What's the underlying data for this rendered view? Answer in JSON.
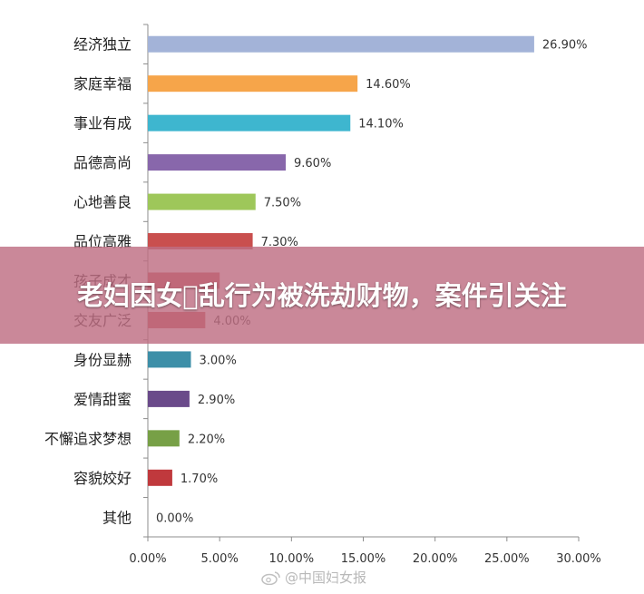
{
  "chart_data": {
    "type": "bar",
    "orientation": "horizontal",
    "categories": [
      "经济独立",
      "家庭幸福",
      "事业有成",
      "品德高尚",
      "心地善良",
      "品位高雅",
      "孩子成才",
      "交友广泛",
      "身份显赫",
      "爱情甜蜜",
      "不懈追求梦想",
      "容貌姣好",
      "其他"
    ],
    "values": [
      26.9,
      14.6,
      14.1,
      9.6,
      7.5,
      7.3,
      5.0,
      4.0,
      3.0,
      2.9,
      2.2,
      1.7,
      0.0
    ],
    "value_labels": [
      "26.90%",
      "14.60%",
      "14.10%",
      "9.60%",
      "7.50%",
      "7.30%",
      "",
      "4.00%",
      "3.00%",
      "2.90%",
      "2.20%",
      "1.70%",
      "0.00%"
    ],
    "colors": [
      "#a3b3d8",
      "#f6a54a",
      "#3eb6cf",
      "#8867ab",
      "#9ec75a",
      "#c94f4e",
      "#c94f4e",
      "#c94f4e",
      "#3d8fa8",
      "#6a4a8a",
      "#77a046",
      "#c0393d",
      "#9ab0d4"
    ],
    "xlim": [
      0,
      30
    ],
    "ticks": [
      0,
      5,
      10,
      15,
      20,
      25,
      30
    ],
    "tick_labels": [
      "0.00%",
      "5.00%",
      "10.00%",
      "15.00%",
      "20.00%",
      "25.00%",
      "30.00%"
    ],
    "grid": false,
    "legend": "none"
  },
  "overlay": {
    "title": "老妇因女\u0000乱行为被洗劫财物，案件引关注"
  },
  "watermark": {
    "text": "@中国妇女报",
    "icon": "weibo-icon"
  }
}
